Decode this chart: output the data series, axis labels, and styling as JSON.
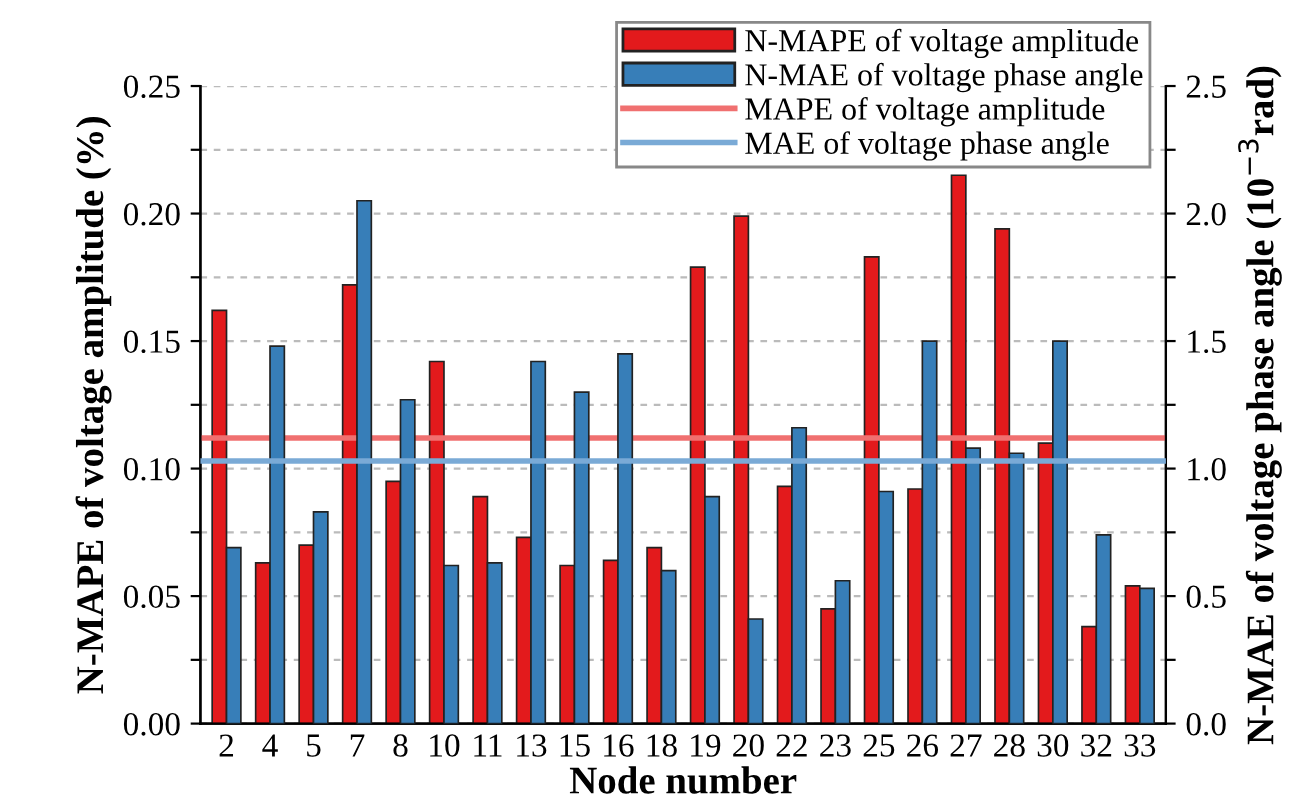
{
  "chart_data": {
    "type": "bar",
    "xlabel": "Node number",
    "ylabel": "N-MAPE of voltage amplitude (%)",
    "y2label": "N-MAE of voltage phase angle (10$^{−3}$rad)",
    "categories": [
      "2",
      "4",
      "5",
      "7",
      "8",
      "10",
      "11",
      "13",
      "15",
      "16",
      "18",
      "19",
      "20",
      "22",
      "23",
      "25",
      "26",
      "27",
      "28",
      "30",
      "32",
      "33"
    ],
    "series": [
      {
        "name": "N-MAPE of voltage amplitude",
        "color": "#e31a1c",
        "values": [
          0.162,
          0.063,
          0.07,
          0.172,
          0.095,
          0.142,
          0.089,
          0.073,
          0.062,
          0.064,
          0.069,
          0.179,
          0.199,
          0.093,
          0.045,
          0.183,
          0.092,
          0.215,
          0.194,
          0.11,
          0.038,
          0.054
        ]
      },
      {
        "name": "N-MAE of voltage phase angle",
        "color": "#377eb8",
        "axis": "y2",
        "values": [
          0.69,
          1.48,
          0.83,
          2.05,
          1.27,
          0.62,
          0.63,
          1.42,
          1.3,
          1.45,
          0.6,
          0.89,
          0.41,
          1.16,
          0.56,
          0.91,
          1.5,
          1.08,
          1.06,
          1.5,
          0.74,
          0.53
        ]
      }
    ],
    "ref_lines": [
      {
        "axis": "y",
        "value": 0.112,
        "label": "MAPE of voltage amplitude",
        "color": "#f07070"
      },
      {
        "axis": "y2",
        "value": 1.03,
        "label": "MAE of voltage phase angle",
        "color": "#7aaad6"
      }
    ],
    "ylim": [
      0,
      0.25
    ],
    "yticks": [
      {
        "value": 0,
        "label": "0.00"
      },
      {
        "value": 0.025,
        "label": null
      },
      0.05,
      {
        "value": 0.075,
        "label": null
      },
      {
        "value": 0.1,
        "label": "0.10"
      },
      {
        "value": 0.125,
        "label": null
      },
      0.15,
      {
        "value": 0.175,
        "label": null
      },
      {
        "value": 0.2,
        "label": "0.20"
      },
      {
        "value": 0.225,
        "label": null
      },
      0.25
    ],
    "y2lim": [
      0,
      2.5
    ],
    "y2ticks": [
      {
        "value": 0,
        "label": "0.0"
      },
      {
        "value": 0.25,
        "label": null
      },
      0.5,
      {
        "value": 0.75,
        "label": null
      },
      {
        "value": 1,
        "label": "1.0"
      },
      {
        "value": 1.25,
        "label": null
      },
      1.5,
      {
        "value": 1.75,
        "label": null
      },
      {
        "value": 2,
        "label": "2.0"
      },
      {
        "value": 2.25,
        "label": null
      },
      2.5
    ],
    "grid": "y",
    "legend": "top right"
  }
}
